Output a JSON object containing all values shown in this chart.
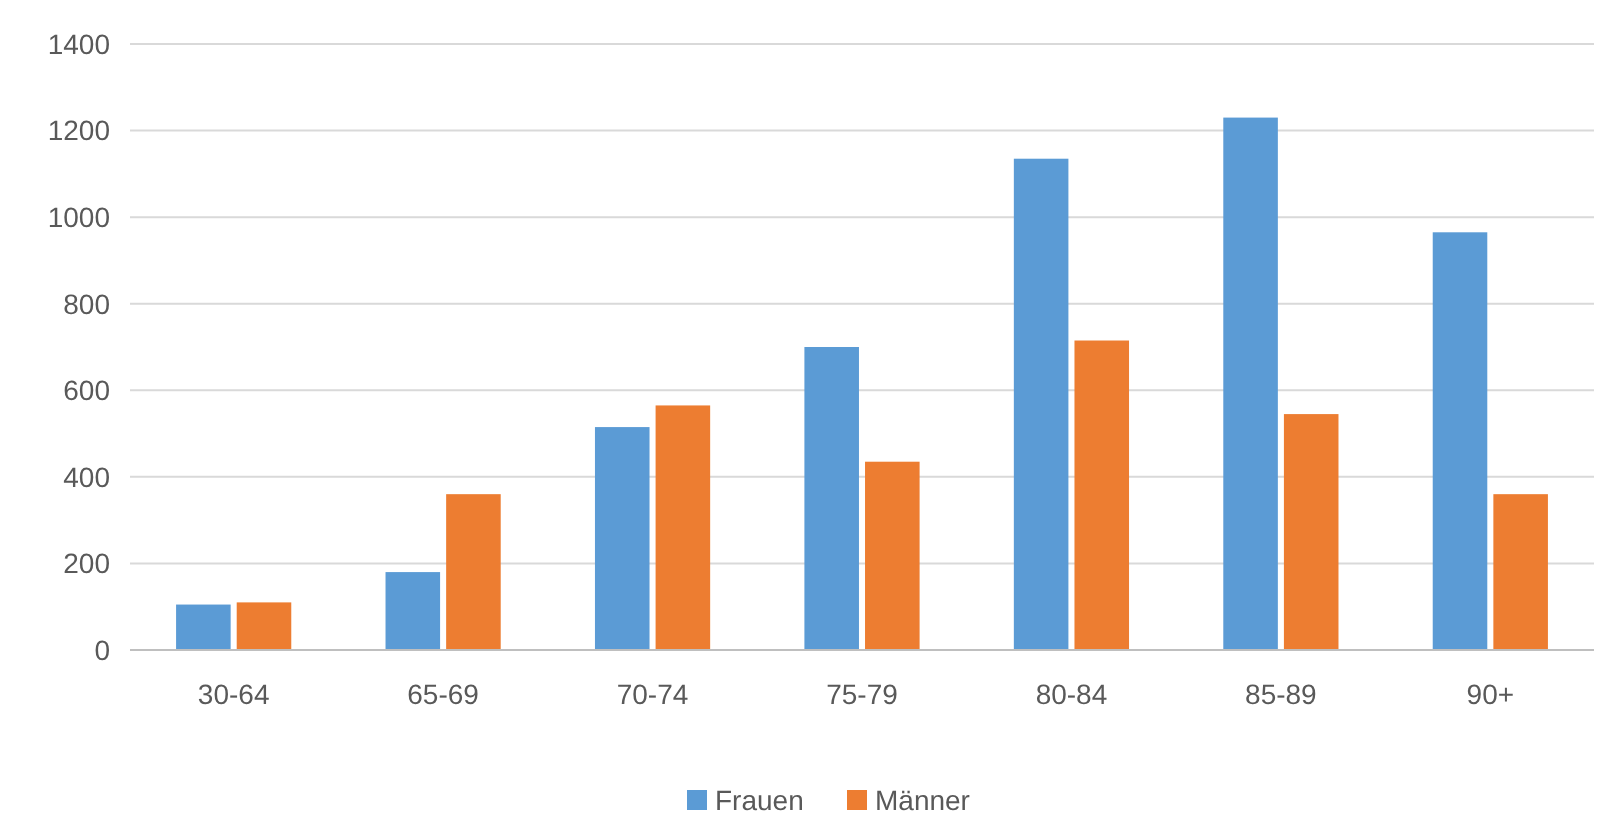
{
  "chart_data": {
    "type": "bar",
    "categories": [
      "30-64",
      "65-69",
      "70-74",
      "75-79",
      "80-84",
      "85-89",
      "90+"
    ],
    "series": [
      {
        "name": "Frauen",
        "color": "#5b9bd5",
        "values": [
          105,
          180,
          515,
          700,
          1135,
          1230,
          965
        ]
      },
      {
        "name": "Männer",
        "color": "#ed7d31",
        "values": [
          110,
          360,
          565,
          435,
          715,
          545,
          360
        ]
      }
    ],
    "ylim": [
      0,
      1400
    ],
    "yticks": [
      0,
      200,
      400,
      600,
      800,
      1000,
      1200,
      1400
    ],
    "grid": "y",
    "legend": "bottom"
  }
}
